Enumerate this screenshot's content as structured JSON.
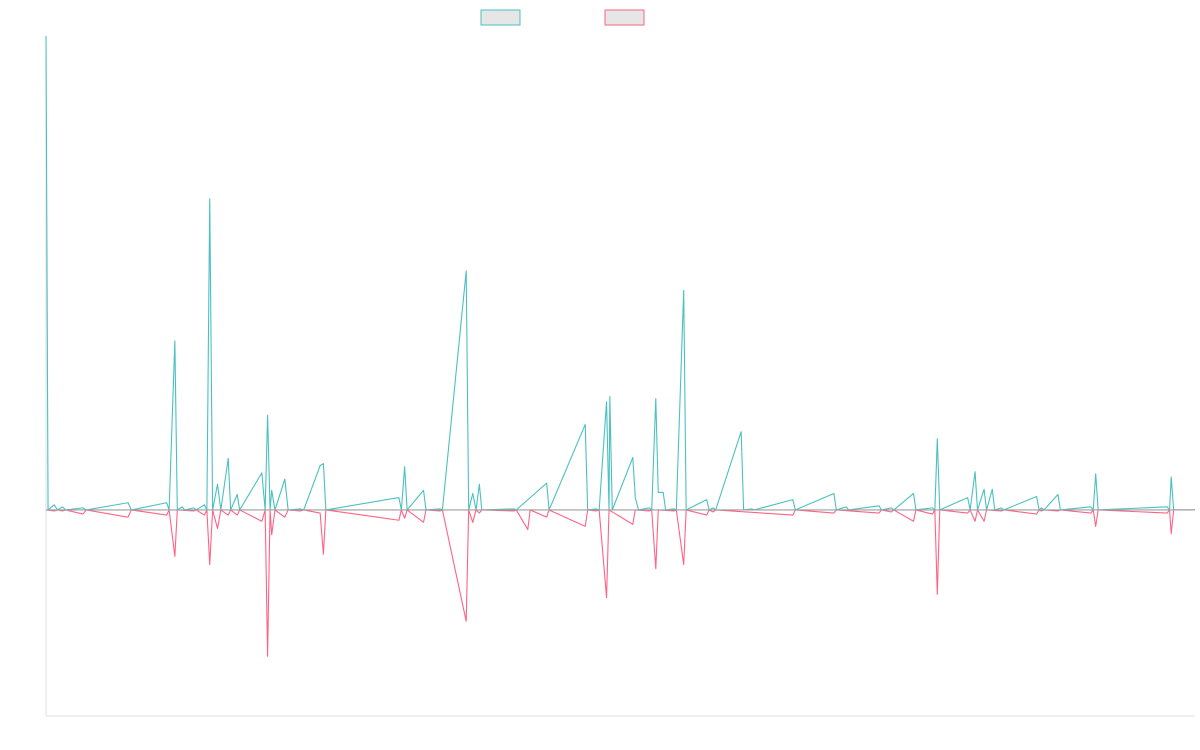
{
  "chart_data": {
    "type": "line",
    "title": "",
    "xlabel": "",
    "ylabel": "",
    "legend": "top-center",
    "grid": false,
    "x_range": [
      0,
      140
    ],
    "ylim": [
      -20,
      46
    ],
    "zero_line_color": "#9e9e9e",
    "series": [
      {
        "name": "",
        "color": "#4bc0c0",
        "fill": "#e6e6e6",
        "values": [
          [
            0,
            46.0
          ],
          [
            0.25,
            0
          ],
          [
            1,
            0.5
          ],
          [
            1.4,
            0
          ],
          [
            2,
            0.3
          ],
          [
            2.4,
            0
          ],
          [
            4.5,
            0.2
          ],
          [
            4.9,
            0
          ],
          [
            10,
            0.7
          ],
          [
            10.4,
            0
          ],
          [
            14.7,
            0.7
          ],
          [
            15,
            0
          ],
          [
            15.7,
            16.4
          ],
          [
            16,
            0
          ],
          [
            16.6,
            0.3
          ],
          [
            16.9,
            0
          ],
          [
            18,
            0.2
          ],
          [
            18.3,
            0
          ],
          [
            19.3,
            0.5
          ],
          [
            19.6,
            0
          ],
          [
            19.95,
            30.2
          ],
          [
            20.3,
            0
          ],
          [
            20.9,
            2.5
          ],
          [
            21.3,
            0
          ],
          [
            22.2,
            5.0
          ],
          [
            22.5,
            0
          ],
          [
            23.3,
            1.5
          ],
          [
            23.6,
            0
          ],
          [
            26.3,
            3.6
          ],
          [
            26.7,
            0
          ],
          [
            27.0,
            9.2
          ],
          [
            27.3,
            0
          ],
          [
            27.5,
            1.9
          ],
          [
            27.9,
            0
          ],
          [
            29.1,
            3.0
          ],
          [
            29.5,
            0
          ],
          [
            31.0,
            0.1
          ],
          [
            31.4,
            0
          ],
          [
            33.4,
            4.3
          ],
          [
            33.8,
            4.5
          ],
          [
            34.1,
            0
          ],
          [
            43.0,
            1.2
          ],
          [
            43.3,
            0
          ],
          [
            43.7,
            4.2
          ],
          [
            44,
            0
          ],
          [
            46.0,
            1.9
          ],
          [
            46.3,
            0
          ],
          [
            48.0,
            0.1
          ],
          [
            48.3,
            0
          ],
          [
            51.2,
            23.2
          ],
          [
            51.5,
            0
          ],
          [
            52.0,
            1.6
          ],
          [
            52.4,
            0
          ],
          [
            52.8,
            2.5
          ],
          [
            53.1,
            0
          ],
          [
            57.0,
            0.1
          ],
          [
            57.3,
            0
          ],
          [
            61.0,
            2.6
          ],
          [
            61.3,
            0
          ],
          [
            65.7,
            8.3
          ],
          [
            66,
            0
          ],
          [
            67.0,
            0.1
          ],
          [
            67.4,
            0
          ],
          [
            68.3,
            10.5
          ],
          [
            68.6,
            0
          ],
          [
            68.7,
            11.0
          ],
          [
            69.0,
            0
          ],
          [
            71.5,
            5.1
          ],
          [
            71.8,
            1.2
          ],
          [
            72.2,
            0
          ],
          [
            73.5,
            0.2
          ],
          [
            73.8,
            0
          ],
          [
            74.3,
            10.8
          ],
          [
            74.6,
            1.7
          ],
          [
            75.2,
            1.7
          ],
          [
            75.5,
            0
          ],
          [
            76.5,
            0.1
          ],
          [
            76.8,
            0
          ],
          [
            77.7,
            21.3
          ],
          [
            78,
            0
          ],
          [
            80.5,
            1.0
          ],
          [
            80.8,
            0
          ],
          [
            81.3,
            0.2
          ],
          [
            81.6,
            0
          ],
          [
            84.7,
            7.6
          ],
          [
            85,
            0
          ],
          [
            86.0,
            0.1
          ],
          [
            86.3,
            0
          ],
          [
            91.0,
            1.0
          ],
          [
            91.3,
            0
          ],
          [
            96.0,
            1.6
          ],
          [
            96.3,
            0
          ],
          [
            97.5,
            0.3
          ],
          [
            97.8,
            0
          ],
          [
            101.5,
            0.4
          ],
          [
            101.8,
            0
          ],
          [
            103.0,
            0.2
          ],
          [
            103.3,
            0
          ],
          [
            105.7,
            1.6
          ],
          [
            106,
            0
          ],
          [
            108.0,
            0.2
          ],
          [
            108.3,
            0
          ],
          [
            108.6,
            6.9
          ],
          [
            108.9,
            0
          ],
          [
            112.3,
            1.2
          ],
          [
            112.6,
            0
          ],
          [
            113.2,
            3.7
          ],
          [
            113.5,
            0
          ],
          [
            114.3,
            2.0
          ],
          [
            114.6,
            0
          ],
          [
            115.3,
            2.0
          ],
          [
            115.6,
            0
          ],
          [
            116.4,
            0.2
          ],
          [
            116.7,
            0
          ],
          [
            120.7,
            1.3
          ],
          [
            121,
            0
          ],
          [
            121.3,
            0.2
          ],
          [
            121.6,
            0
          ],
          [
            123.3,
            1.5
          ],
          [
            123.6,
            0
          ],
          [
            127.3,
            0.3
          ],
          [
            127.6,
            0
          ],
          [
            127.9,
            3.5
          ],
          [
            128.2,
            0
          ],
          [
            136.6,
            0.3
          ],
          [
            136.9,
            0
          ],
          [
            137.1,
            3.2
          ],
          [
            137.4,
            0
          ],
          [
            140,
            0
          ]
        ]
      },
      {
        "name": "",
        "color": "#ff6384",
        "fill": "#e6e6e6",
        "values": [
          [
            0,
            0
          ],
          [
            1,
            -0.1
          ],
          [
            1.4,
            0
          ],
          [
            2,
            -0.1
          ],
          [
            2.4,
            0
          ],
          [
            4.5,
            -0.4
          ],
          [
            4.9,
            0
          ],
          [
            10,
            -0.7
          ],
          [
            10.4,
            0
          ],
          [
            14.7,
            -0.5
          ],
          [
            15,
            0
          ],
          [
            15.7,
            -4.5
          ],
          [
            16,
            0
          ],
          [
            18,
            -0.1
          ],
          [
            18.3,
            0
          ],
          [
            19.3,
            -0.5
          ],
          [
            19.6,
            0
          ],
          [
            19.95,
            -5.3
          ],
          [
            20.3,
            0
          ],
          [
            20.9,
            -1.8
          ],
          [
            21.3,
            0
          ],
          [
            22.2,
            -0.5
          ],
          [
            22.5,
            0
          ],
          [
            23.3,
            -0.5
          ],
          [
            23.6,
            0
          ],
          [
            26.3,
            -1.1
          ],
          [
            26.7,
            0
          ],
          [
            27.0,
            -14.2
          ],
          [
            27.3,
            0
          ],
          [
            27.5,
            -2.4
          ],
          [
            27.9,
            0
          ],
          [
            29.1,
            -0.7
          ],
          [
            29.5,
            0
          ],
          [
            31.0,
            -0.1
          ],
          [
            31.4,
            0
          ],
          [
            33.4,
            -0.3
          ],
          [
            33.8,
            -4.3
          ],
          [
            34.1,
            0
          ],
          [
            43.0,
            -1.0
          ],
          [
            43.3,
            0
          ],
          [
            43.7,
            -0.8
          ],
          [
            44,
            0
          ],
          [
            46.0,
            -1.2
          ],
          [
            46.3,
            0
          ],
          [
            48.0,
            -0.1
          ],
          [
            48.3,
            0
          ],
          [
            51.2,
            -10.8
          ],
          [
            51.5,
            0
          ],
          [
            52.0,
            -1.2
          ],
          [
            52.4,
            0
          ],
          [
            52.8,
            -0.3
          ],
          [
            53.1,
            0
          ],
          [
            57.0,
            -0.1
          ],
          [
            57.3,
            0
          ],
          [
            58.7,
            -1.9
          ],
          [
            59,
            0
          ],
          [
            61.0,
            -0.7
          ],
          [
            61.3,
            0
          ],
          [
            65.7,
            -1.6
          ],
          [
            66,
            0
          ],
          [
            67.0,
            -0.1
          ],
          [
            67.4,
            0
          ],
          [
            68.3,
            -8.5
          ],
          [
            68.6,
            0
          ],
          [
            71.5,
            -1.4
          ],
          [
            71.8,
            0
          ],
          [
            73.5,
            -0.1
          ],
          [
            73.8,
            0
          ],
          [
            74.3,
            -5.7
          ],
          [
            74.6,
            0
          ],
          [
            76.5,
            -0.1
          ],
          [
            76.8,
            0
          ],
          [
            77.7,
            -5.3
          ],
          [
            78,
            0
          ],
          [
            80.5,
            -0.5
          ],
          [
            80.8,
            0
          ],
          [
            81.3,
            -0.2
          ],
          [
            81.6,
            0
          ],
          [
            91.0,
            -0.5
          ],
          [
            91.3,
            0
          ],
          [
            96.0,
            -0.3
          ],
          [
            96.3,
            0
          ],
          [
            101.5,
            -0.3
          ],
          [
            101.8,
            0
          ],
          [
            103.0,
            -0.2
          ],
          [
            103.3,
            0
          ],
          [
            105.7,
            -1.1
          ],
          [
            106,
            0
          ],
          [
            108.0,
            -0.4
          ],
          [
            108.3,
            0
          ],
          [
            108.6,
            -8.2
          ],
          [
            108.9,
            0
          ],
          [
            112.3,
            -0.3
          ],
          [
            112.6,
            0
          ],
          [
            113.2,
            -1.1
          ],
          [
            113.5,
            0
          ],
          [
            114.3,
            -1.1
          ],
          [
            114.6,
            0
          ],
          [
            116.4,
            -0.1
          ],
          [
            116.7,
            0
          ],
          [
            120.7,
            -0.4
          ],
          [
            121,
            0
          ],
          [
            121.3,
            -0.1
          ],
          [
            121.6,
            0
          ],
          [
            123.3,
            -0.1
          ],
          [
            123.6,
            0
          ],
          [
            127.3,
            -0.3
          ],
          [
            127.6,
            0
          ],
          [
            127.9,
            -1.6
          ],
          [
            128.2,
            0
          ],
          [
            136.6,
            -0.3
          ],
          [
            136.9,
            0
          ],
          [
            137.1,
            -2.3
          ],
          [
            137.4,
            0
          ],
          [
            140,
            0
          ]
        ]
      }
    ]
  }
}
